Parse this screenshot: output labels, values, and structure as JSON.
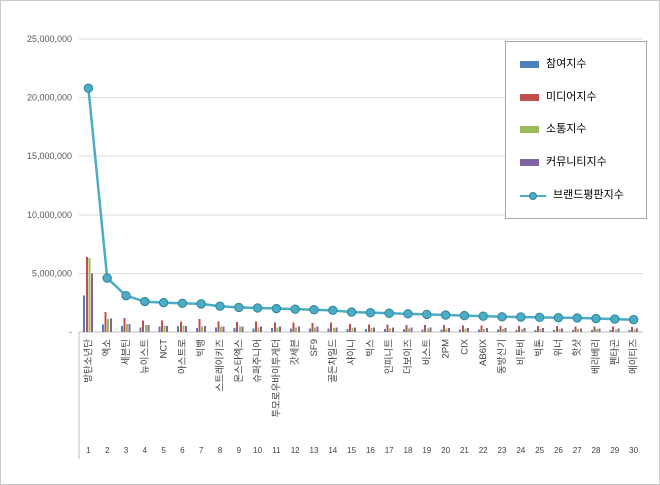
{
  "frame": {
    "background": "#ffffff",
    "border_color": "#c9c9c9"
  },
  "axis": {
    "ytick_labels_top_to_bottom": [
      "25,000,000",
      "20,000,000",
      "15,000,000",
      "10,000,000",
      "5,000,000",
      "-"
    ],
    "label_color": "#595959",
    "gridline_color": "#d9d9d9",
    "axisline_color": "#bfbfbf"
  },
  "chart_data": {
    "type": "bar",
    "title": "",
    "xlabel": "",
    "ylabel": "",
    "ylim": [
      0,
      25000000
    ],
    "ytick_step": 5000000,
    "ytick_labels": [
      "-",
      "5,000,000",
      "10,000,000",
      "15,000,000",
      "20,000,000",
      "25,000,000"
    ],
    "grid": true,
    "legend_position": "right-top",
    "categories": [
      "방탄소년단",
      "엑소",
      "세븐틴",
      "뉴이스트",
      "NCT",
      "아스트로",
      "빅뱅",
      "스트레이키즈",
      "몬스타엑스",
      "슈퍼주니어",
      "투모로우바이투게더",
      "갓세븐",
      "SF9",
      "골든차일드",
      "샤이니",
      "빅스",
      "인피니트",
      "더보이즈",
      "비스트",
      "2PM",
      "CIX",
      "AB6IX",
      "동방신기",
      "비투비",
      "빅톤",
      "위너",
      "핫샷",
      "베리베리",
      "펜타곤",
      "에이티즈"
    ],
    "category_numbers": [
      "1",
      "2",
      "3",
      "4",
      "5",
      "6",
      "7",
      "8",
      "9",
      "10",
      "11",
      "12",
      "13",
      "14",
      "15",
      "16",
      "17",
      "18",
      "19",
      "20",
      "21",
      "22",
      "23",
      "24",
      "25",
      "26",
      "27",
      "28",
      "29",
      "30"
    ],
    "series": [
      {
        "name": "참여지수",
        "type": "bar",
        "color": "#4F81BD",
        "values": [
          3100000,
          650000,
          500000,
          400000,
          450000,
          500000,
          350000,
          400000,
          350000,
          300000,
          350000,
          300000,
          300000,
          300000,
          250000,
          250000,
          250000,
          250000,
          200000,
          200000,
          200000,
          200000,
          200000,
          180000,
          180000,
          170000,
          170000,
          150000,
          150000,
          150000
        ]
      },
      {
        "name": "미디어지수",
        "type": "bar",
        "color": "#C0504D",
        "values": [
          6400000,
          1700000,
          1200000,
          1000000,
          1000000,
          900000,
          1100000,
          900000,
          850000,
          900000,
          800000,
          800000,
          750000,
          800000,
          700000,
          650000,
          650000,
          600000,
          600000,
          600000,
          550000,
          550000,
          500000,
          500000,
          500000,
          500000,
          480000,
          450000,
          450000,
          420000
        ]
      },
      {
        "name": "소통지수",
        "type": "bar",
        "color": "#9BBB59",
        "values": [
          6300000,
          1100000,
          700000,
          600000,
          550000,
          550000,
          450000,
          450000,
          450000,
          400000,
          400000,
          400000,
          400000,
          350000,
          350000,
          350000,
          300000,
          300000,
          300000,
          300000,
          300000,
          250000,
          250000,
          250000,
          250000,
          250000,
          250000,
          250000,
          220000,
          200000
        ]
      },
      {
        "name": "커뮤니티지수",
        "type": "bar",
        "color": "#8064A2",
        "values": [
          5000000,
          1150000,
          700000,
          600000,
          500000,
          500000,
          500000,
          450000,
          450000,
          450000,
          450000,
          450000,
          450000,
          400000,
          400000,
          400000,
          400000,
          400000,
          400000,
          350000,
          350000,
          350000,
          350000,
          350000,
          320000,
          300000,
          300000,
          300000,
          280000,
          280000
        ]
      },
      {
        "name": "브랜드평판지수",
        "type": "line",
        "color": "#4BACC6",
        "marker_stroke": "#31849B",
        "values": [
          20800000,
          4600000,
          3100000,
          2600000,
          2500000,
          2450000,
          2400000,
          2200000,
          2100000,
          2050000,
          2000000,
          1950000,
          1900000,
          1850000,
          1700000,
          1650000,
          1600000,
          1550000,
          1500000,
          1450000,
          1400000,
          1350000,
          1300000,
          1280000,
          1250000,
          1220000,
          1200000,
          1150000,
          1100000,
          1050000
        ]
      }
    ]
  }
}
